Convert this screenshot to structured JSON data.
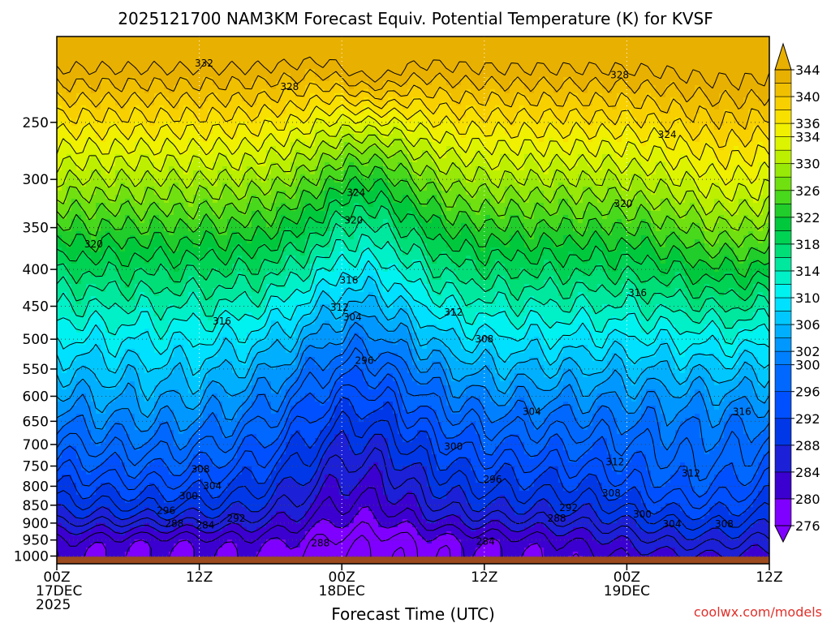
{
  "chart_data": {
    "type": "heatmap",
    "title": "2025121700 NAM3KM Forecast Equiv. Potential Temperature (K) for KVSF",
    "xlabel": "Forecast Time (UTC)",
    "ylabel": "",
    "station": "KVSF",
    "model": "NAM3KM",
    "init_time": "2025121700",
    "variable": "Equiv. Potential Temperature",
    "units": "K",
    "x_hours_range": [
      0,
      60
    ],
    "x_ticks": [
      {
        "hour": 0,
        "line1": "00Z",
        "line2": "17DEC",
        "line3": "2025"
      },
      {
        "hour": 12,
        "line1": "12Z",
        "line2": "",
        "line3": ""
      },
      {
        "hour": 24,
        "line1": "00Z",
        "line2": "18DEC",
        "line3": ""
      },
      {
        "hour": 36,
        "line1": "12Z",
        "line2": "",
        "line3": ""
      },
      {
        "hour": 48,
        "line1": "00Z",
        "line2": "19DEC",
        "line3": ""
      },
      {
        "hour": 60,
        "line1": "12Z",
        "line2": "",
        "line3": ""
      }
    ],
    "y_axis": "pressure (hPa), log scale, inverted",
    "y_range": [
      1025,
      190
    ],
    "y_ticks": [
      250,
      300,
      350,
      400,
      450,
      500,
      550,
      600,
      650,
      700,
      750,
      800,
      850,
      900,
      950,
      1000
    ],
    "colorbar": {
      "levels": [
        276,
        280,
        284,
        288,
        292,
        296,
        300,
        302,
        304,
        306,
        308,
        310,
        312,
        314,
        316,
        318,
        320,
        322,
        324,
        326,
        328,
        330,
        332,
        334,
        336,
        338,
        340,
        342,
        344
      ],
      "labels": [
        344,
        340,
        336,
        334,
        330,
        326,
        322,
        318,
        314,
        310,
        306,
        302,
        300,
        296,
        292,
        288,
        284,
        280,
        276
      ],
      "colors": [
        "#7f00ff",
        "#3b00d0",
        "#1c20d6",
        "#0038e8",
        "#0050ff",
        "#0068ff",
        "#0080ff",
        "#0098ff",
        "#00b0ff",
        "#00c8ff",
        "#00e0ff",
        "#00f2f0",
        "#00f0c8",
        "#00e89e",
        "#00de78",
        "#00d254",
        "#00c83c",
        "#20cd2a",
        "#48d81c",
        "#70e010",
        "#98e808",
        "#bcf000",
        "#dcf400",
        "#f0f000",
        "#f8e000",
        "#f8d000",
        "#f0c000",
        "#e8b000"
      ],
      "extends": "both"
    },
    "contour_interval": 2,
    "contour_labels": [
      {
        "value": "332",
        "hour": 12.4,
        "p": 207
      },
      {
        "value": "328",
        "hour": 19.6,
        "p": 223
      },
      {
        "value": "328",
        "hour": 47.4,
        "p": 215
      },
      {
        "value": "324",
        "hour": 51.4,
        "p": 260
      },
      {
        "value": "324",
        "hour": 25.2,
        "p": 313
      },
      {
        "value": "320",
        "hour": 25.0,
        "p": 342
      },
      {
        "value": "320",
        "hour": 47.7,
        "p": 324
      },
      {
        "value": "320",
        "hour": 3.1,
        "p": 369
      },
      {
        "value": "316",
        "hour": 24.6,
        "p": 414
      },
      {
        "value": "316",
        "hour": 48.9,
        "p": 431
      },
      {
        "value": "316",
        "hour": 13.9,
        "p": 472
      },
      {
        "value": "312",
        "hour": 23.8,
        "p": 452
      },
      {
        "value": "312",
        "hour": 33.4,
        "p": 459
      },
      {
        "value": "304",
        "hour": 24.9,
        "p": 466
      },
      {
        "value": "308",
        "hour": 36.0,
        "p": 500
      },
      {
        "value": "296",
        "hour": 25.9,
        "p": 535
      },
      {
        "value": "304",
        "hour": 40.0,
        "p": 630
      },
      {
        "value": "300",
        "hour": 33.4,
        "p": 705
      },
      {
        "value": "316",
        "hour": 57.7,
        "p": 630
      },
      {
        "value": "312",
        "hour": 47.0,
        "p": 740
      },
      {
        "value": "312",
        "hour": 53.4,
        "p": 768
      },
      {
        "value": "308",
        "hour": 12.1,
        "p": 758
      },
      {
        "value": "304",
        "hour": 13.1,
        "p": 799
      },
      {
        "value": "300",
        "hour": 11.1,
        "p": 825
      },
      {
        "value": "296",
        "hour": 36.7,
        "p": 783
      },
      {
        "value": "296",
        "hour": 9.2,
        "p": 865
      },
      {
        "value": "292",
        "hour": 15.1,
        "p": 887
      },
      {
        "value": "292",
        "hour": 43.1,
        "p": 857
      },
      {
        "value": "288",
        "hour": 9.9,
        "p": 902
      },
      {
        "value": "284",
        "hour": 12.5,
        "p": 906
      },
      {
        "value": "288",
        "hour": 42.1,
        "p": 887
      },
      {
        "value": "288",
        "hour": 22.2,
        "p": 960
      },
      {
        "value": "284",
        "hour": 36.1,
        "p": 954
      },
      {
        "value": "308",
        "hour": 46.7,
        "p": 818
      },
      {
        "value": "300",
        "hour": 49.3,
        "p": 875
      },
      {
        "value": "304",
        "hour": 51.8,
        "p": 903
      },
      {
        "value": "308",
        "hour": 56.2,
        "p": 903
      }
    ]
  },
  "credit": "coolwx.com/models",
  "colors": {
    "terrain": "#9c4a1e",
    "grid": "#444444",
    "credit": "#e0302a"
  }
}
